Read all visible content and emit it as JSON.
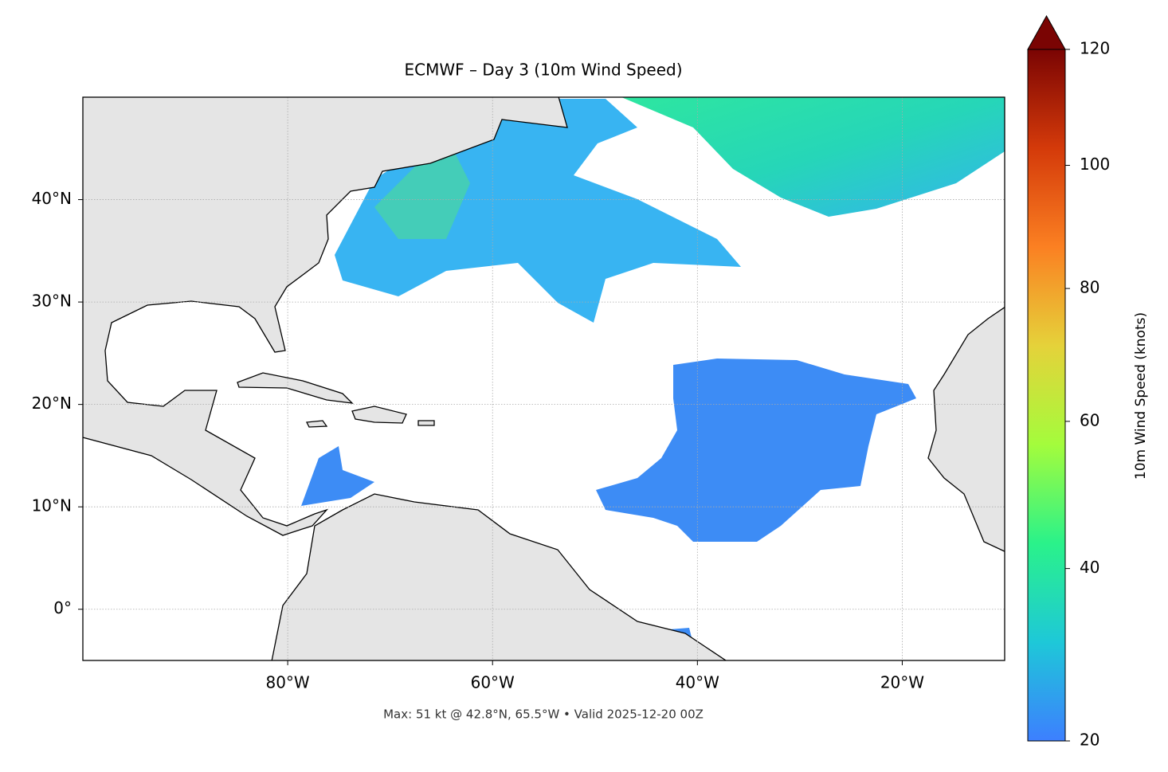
{
  "header": {
    "title": "ECMWF – Day 3 (10m Wind Speed)"
  },
  "map": {
    "lonlim": [
      -100,
      -10
    ],
    "latlim": [
      -5,
      50
    ],
    "grid": true,
    "lon_ticks": [
      {
        "value": -80,
        "label": "80°W"
      },
      {
        "value": -60,
        "label": "60°W"
      },
      {
        "value": -40,
        "label": "40°W"
      },
      {
        "value": -20,
        "label": "20°W"
      }
    ],
    "lat_ticks": [
      {
        "value": 0,
        "label": "0°"
      },
      {
        "value": 10,
        "label": "10°N"
      },
      {
        "value": 20,
        "label": "20°N"
      },
      {
        "value": 30,
        "label": "30°N"
      },
      {
        "value": 40,
        "label": "40°N"
      }
    ]
  },
  "colorbar": {
    "label": "10m Wind Speed (knots)",
    "lim": [
      20,
      120
    ],
    "ticks": [
      20,
      40,
      60,
      80,
      100,
      120
    ],
    "norm": "power",
    "gamma": 0.7,
    "extend": "max",
    "colors": [
      "#3d7fff",
      "#1ec8d8",
      "#2af28a",
      "#a4fc3c",
      "#e5d23a",
      "#fb8022",
      "#d43a0a",
      "#7a0403"
    ]
  },
  "footer": {
    "text": "Max: 51 kt @ 42.8°N, 65.5°W • Valid 2025-12-20 00Z"
  }
}
